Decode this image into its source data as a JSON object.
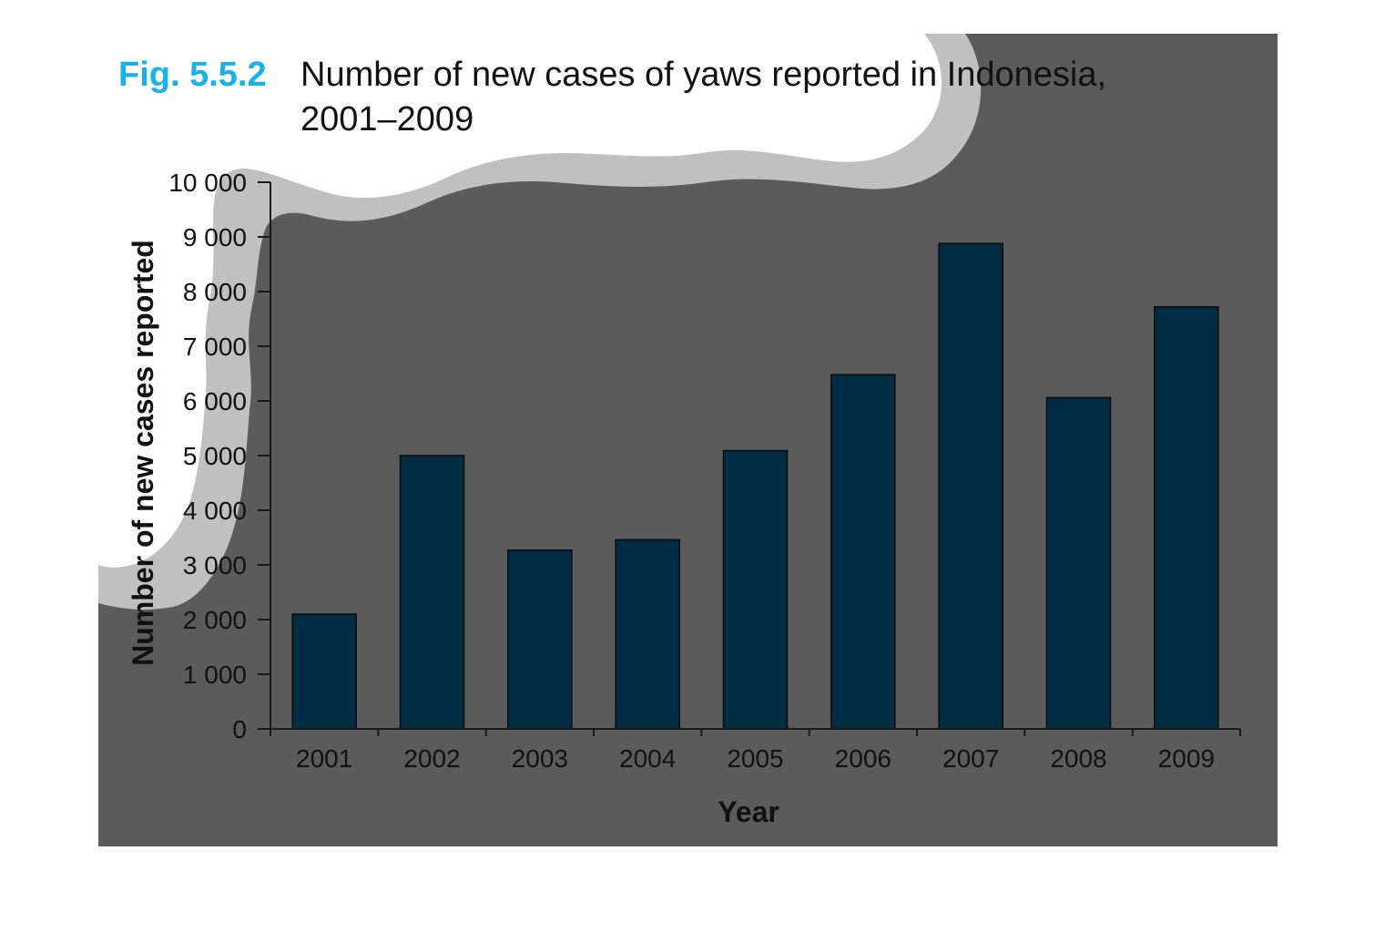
{
  "figure": {
    "number": "Fig. 5.5.2",
    "title_line1": "Number of new cases of yaws reported in Indonesia,",
    "title_line2": "2001–2009"
  },
  "colors": {
    "panel": "#5b5b5b",
    "cloud_shadow": "#c0c0c0",
    "cloud": "#ffffff",
    "bar": "#002c44",
    "axis": "#1a1a1a",
    "accent": "#1ab0e8",
    "text": "#111111"
  },
  "chart_data": {
    "type": "bar",
    "title": "Number of new cases of yaws reported in Indonesia, 2001–2009",
    "xlabel": "Year",
    "ylabel": "Number of new cases reported",
    "categories": [
      "2001",
      "2002",
      "2003",
      "2004",
      "2005",
      "2006",
      "2007",
      "2008",
      "2009"
    ],
    "values": [
      2100,
      5000,
      3270,
      3460,
      5090,
      6480,
      8880,
      6060,
      7720
    ],
    "ylim": [
      0,
      10000
    ],
    "yticks": [
      0,
      1000,
      2000,
      3000,
      4000,
      5000,
      6000,
      7000,
      8000,
      9000,
      10000
    ],
    "ytick_labels": [
      "0",
      "1 000",
      "2 000",
      "3 000",
      "4 000",
      "5 000",
      "6 000",
      "7 000",
      "8 000",
      "9 000",
      "10 000"
    ],
    "grid": false,
    "legend": "none"
  }
}
